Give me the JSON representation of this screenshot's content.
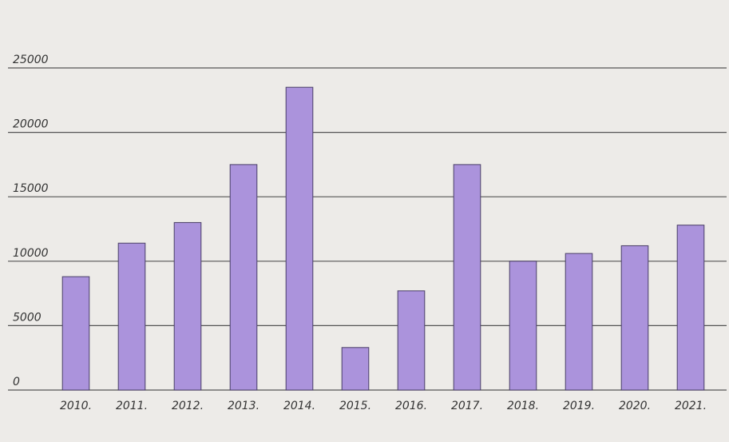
{
  "chart_data": {
    "type": "bar",
    "categories": [
      "2010.",
      "2011.",
      "2012.",
      "2013.",
      "2014.",
      "2015.",
      "2016.",
      "2017.",
      "2018.",
      "2019.",
      "2020.",
      "2021."
    ],
    "values": [
      8800,
      11400,
      13000,
      17500,
      23500,
      3300,
      7700,
      17500,
      10000,
      10600,
      11200,
      12800
    ],
    "color": "#ab93dc",
    "ylim": [
      0,
      25000
    ],
    "yticks": [
      0,
      5000,
      10000,
      15000,
      20000,
      25000
    ],
    "grid": true
  }
}
